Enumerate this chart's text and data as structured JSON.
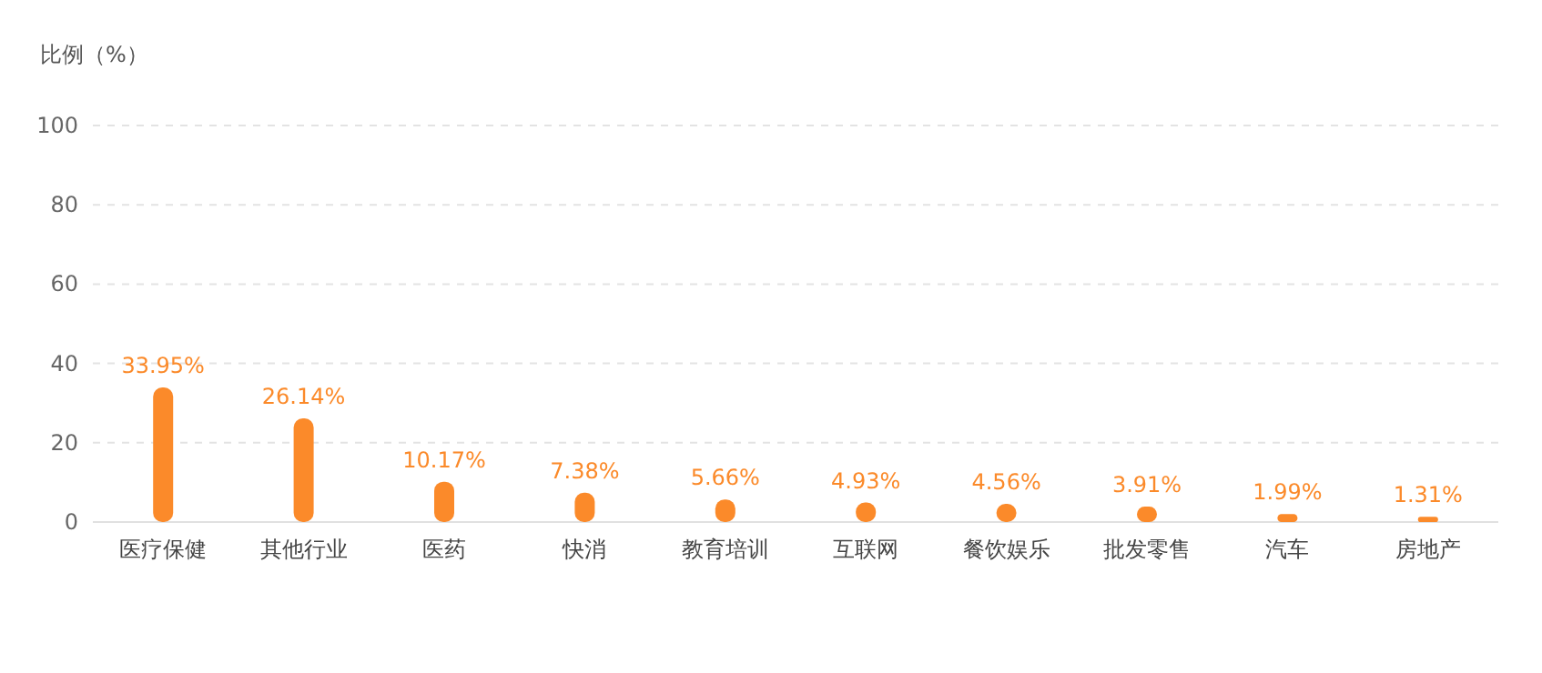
{
  "chart_data": {
    "type": "bar",
    "ylabel": "比例（%）",
    "categories": [
      "医疗保健",
      "其他行业",
      "医药",
      "快消",
      "教育培训",
      "互联网",
      "餐饮娱乐",
      "批发零售",
      "汽车",
      "房地产"
    ],
    "values": [
      33.95,
      26.14,
      10.17,
      7.38,
      5.66,
      4.93,
      4.56,
      3.91,
      1.99,
      1.31
    ],
    "value_labels": [
      "33.95%",
      "26.14%",
      "10.17%",
      "7.38%",
      "5.66%",
      "4.93%",
      "4.56%",
      "3.91%",
      "1.99%",
      "1.31%"
    ],
    "color": "#fb8a2a",
    "ylim": [
      0,
      100
    ],
    "yticks": [
      0,
      20,
      40,
      60,
      80,
      100
    ],
    "grid": "y"
  }
}
